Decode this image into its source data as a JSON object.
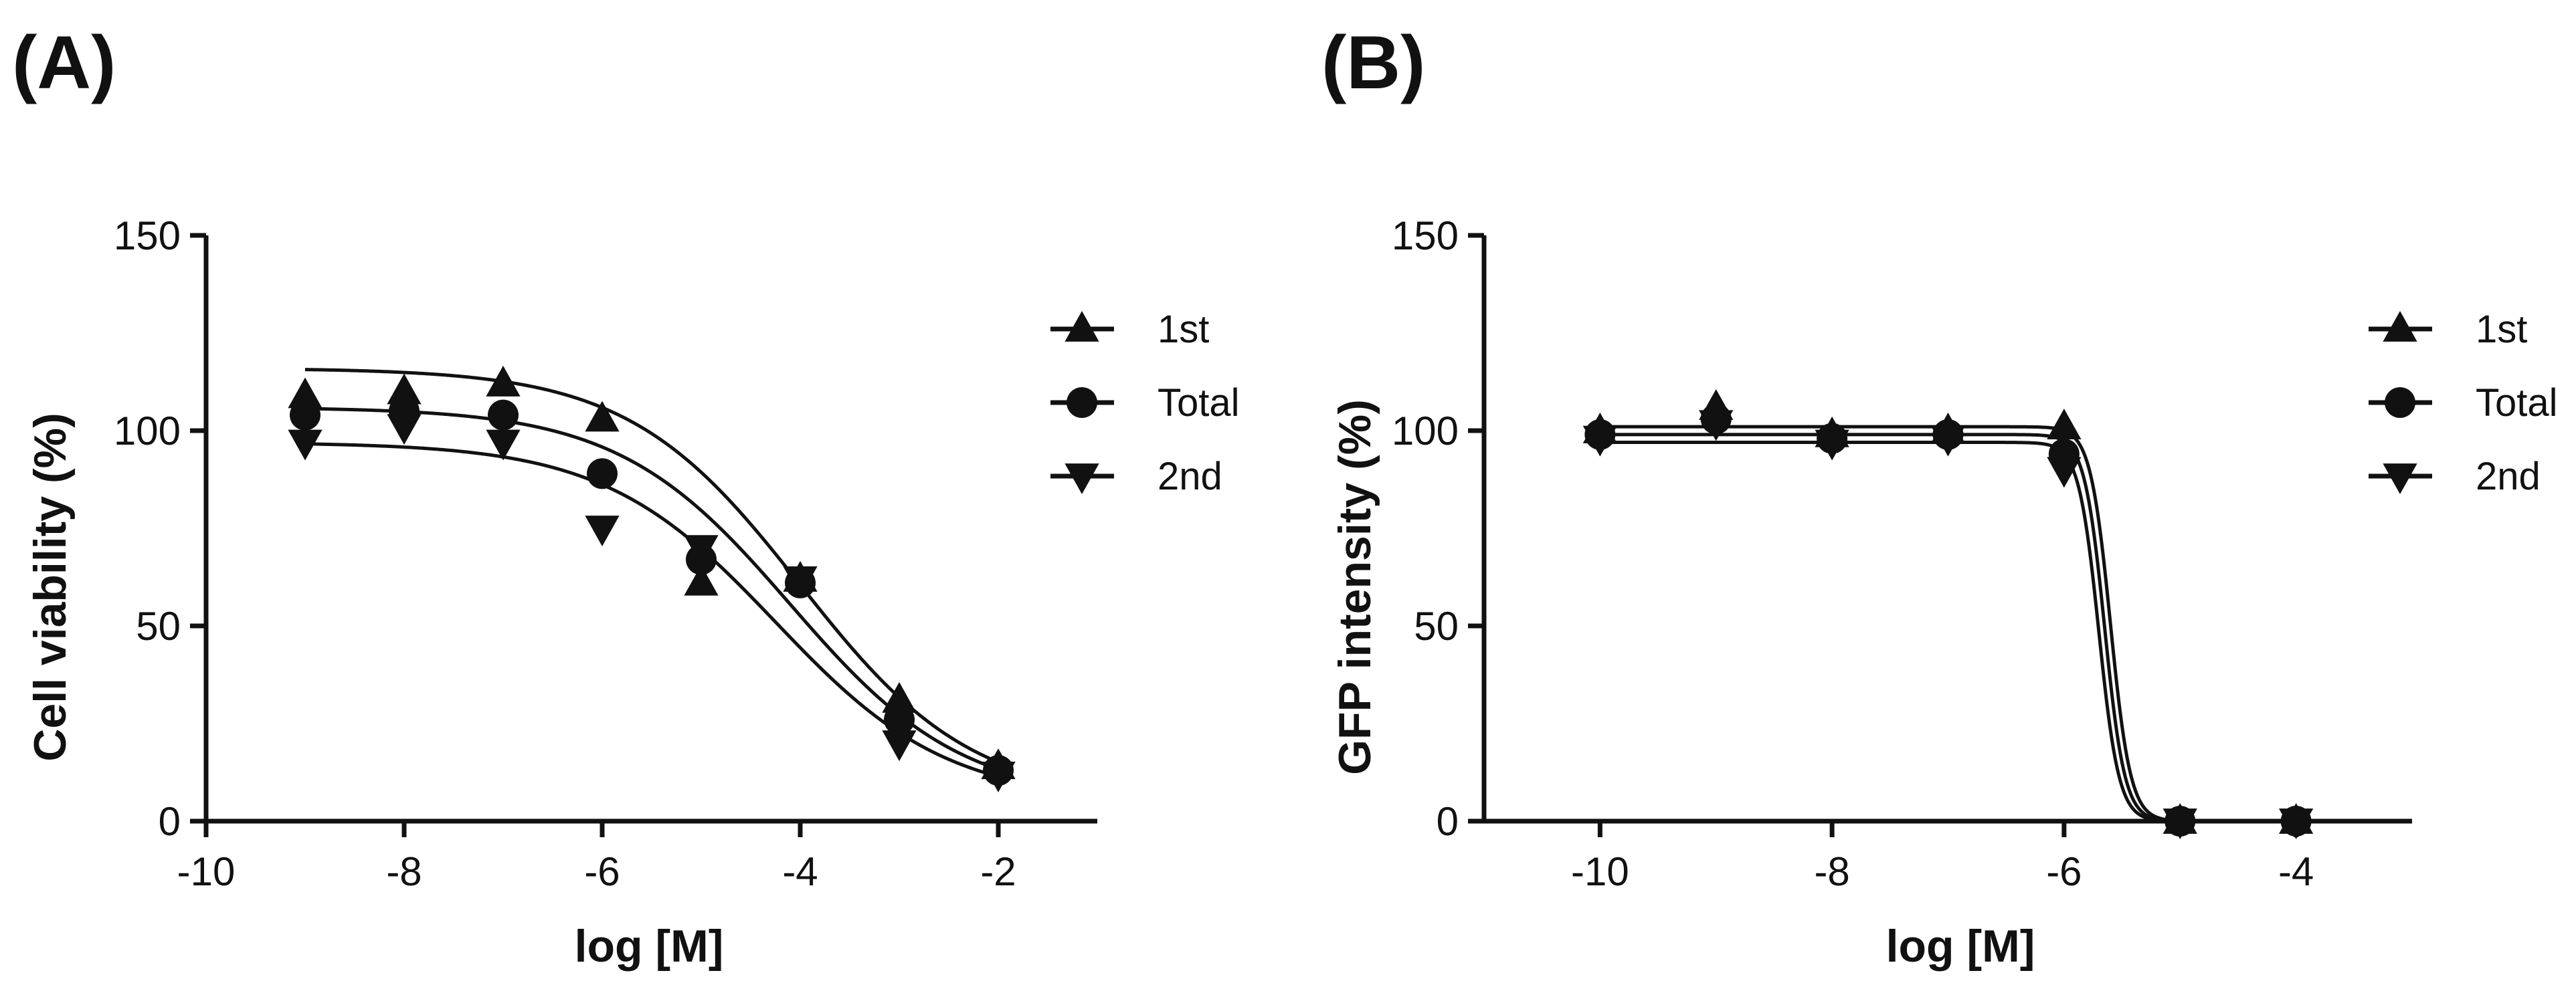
{
  "chart_data": [
    {
      "type": "scatter",
      "panel_label": "(A)",
      "xlabel": "log [M]",
      "ylabel": "Cell viability (%)",
      "xlim": [
        -10,
        -1
      ],
      "ylim": [
        0,
        150
      ],
      "xticks": [
        -10,
        -8,
        -6,
        -4,
        -2
      ],
      "yticks": [
        0,
        50,
        100,
        150
      ],
      "legend": {
        "placement": "right"
      },
      "series": [
        {
          "name": "1st",
          "marker": "triangle-up",
          "points": [
            [
              -9,
              109
            ],
            [
              -8,
              110
            ],
            [
              -7,
              112
            ],
            [
              -6,
              103
            ],
            [
              -5,
              61
            ],
            [
              -4,
              62
            ],
            [
              -3,
              31
            ],
            [
              -2,
              14
            ]
          ],
          "fit": {
            "top": 116,
            "bottom": 5,
            "log_ec50": -4.0,
            "hill": 0.5
          }
        },
        {
          "name": "Total",
          "marker": "circle",
          "points": [
            [
              -9,
              104
            ],
            [
              -8,
              105
            ],
            [
              -7,
              104
            ],
            [
              -6,
              89
            ],
            [
              -5,
              67
            ],
            [
              -4,
              61
            ],
            [
              -3,
              26
            ],
            [
              -2,
              13
            ]
          ],
          "fit": {
            "top": 106,
            "bottom": 5,
            "log_ec50": -4.1,
            "hill": 0.5
          }
        },
        {
          "name": "2nd",
          "marker": "triangle-down",
          "points": [
            [
              -9,
              97
            ],
            [
              -8,
              101
            ],
            [
              -7,
              97
            ],
            [
              -6,
              75
            ],
            [
              -5,
              70
            ],
            [
              -4,
              62
            ],
            [
              -3,
              20
            ],
            [
              -2,
              12
            ]
          ],
          "fit": {
            "top": 97,
            "bottom": 5,
            "log_ec50": -4.25,
            "hill": 0.5
          }
        }
      ]
    },
    {
      "type": "scatter",
      "panel_label": "(B)",
      "xlabel": "log [M]",
      "ylabel": "GFP intensity (%)",
      "xlim": [
        -11,
        -3
      ],
      "ylim": [
        0,
        150
      ],
      "xticks": [
        -10,
        -8,
        -6,
        -4
      ],
      "yticks": [
        0,
        50,
        100,
        150
      ],
      "legend": {
        "placement": "right"
      },
      "series": [
        {
          "name": "1st",
          "marker": "triangle-up",
          "points": [
            [
              -10,
              100
            ],
            [
              -9,
              106
            ],
            [
              -8,
              99
            ],
            [
              -7,
              100
            ],
            [
              -6,
              101
            ],
            [
              -5,
              0
            ],
            [
              -4,
              0
            ]
          ],
          "fit": {
            "top": 101,
            "bottom": 0,
            "log_ec50": -5.6,
            "hill": 5
          }
        },
        {
          "name": "Total",
          "marker": "circle",
          "points": [
            [
              -10,
              99
            ],
            [
              -9,
              103
            ],
            [
              -8,
              98
            ],
            [
              -7,
              99
            ],
            [
              -6,
              94
            ],
            [
              -5,
              0
            ],
            [
              -4,
              0
            ]
          ],
          "fit": {
            "top": 99,
            "bottom": 0,
            "log_ec50": -5.65,
            "hill": 5
          }
        },
        {
          "name": "2nd",
          "marker": "triangle-down",
          "points": [
            [
              -10,
              98
            ],
            [
              -9,
              102
            ],
            [
              -8,
              97
            ],
            [
              -7,
              98
            ],
            [
              -6,
              90
            ],
            [
              -5,
              0
            ],
            [
              -4,
              0
            ]
          ],
          "fit": {
            "top": 97,
            "bottom": 0,
            "log_ec50": -5.7,
            "hill": 5
          }
        }
      ]
    }
  ]
}
